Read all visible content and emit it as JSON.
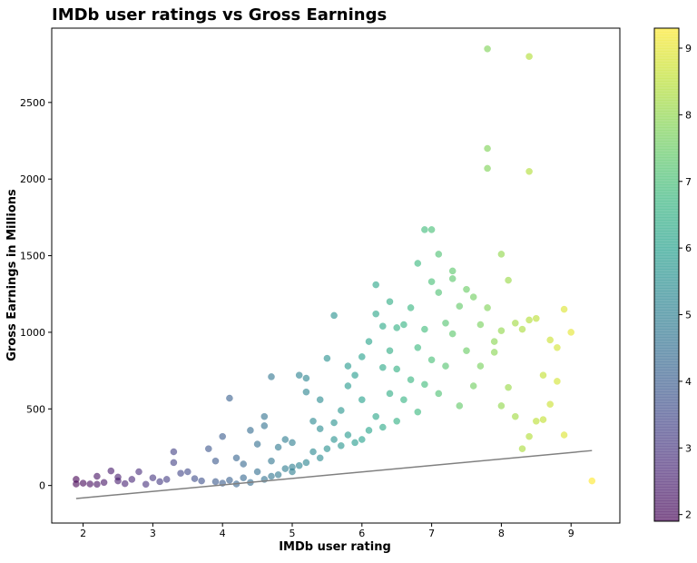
{
  "chart_data": {
    "type": "scatter",
    "title": "IMDb user ratings vs Gross Earnings",
    "xlabel": "IMDb user rating",
    "ylabel": "Gross Earnings in Millions",
    "xlim": [
      1.55,
      9.7
    ],
    "ylim": [
      -245,
      2985
    ],
    "x_ticks": [
      2,
      3,
      4,
      5,
      6,
      7,
      8,
      9
    ],
    "y_ticks": [
      0,
      500,
      1000,
      1500,
      2000,
      2500
    ],
    "grid": false,
    "colorbar": {
      "colormap": "viridis",
      "range": [
        1.9,
        9.3
      ],
      "ticks": [
        2,
        3,
        4,
        5,
        6,
        7,
        8,
        9
      ],
      "alpha": 0.6
    },
    "marker_alpha": 0.6,
    "trendline": {
      "color": "#808080",
      "points": [
        [
          1.9,
          -85
        ],
        [
          9.3,
          228
        ]
      ]
    },
    "series": [
      {
        "points": [
          [
            1.9,
            40
          ],
          [
            1.9,
            10
          ],
          [
            2.0,
            15
          ],
          [
            2.1,
            10
          ],
          [
            2.2,
            8
          ],
          [
            2.2,
            60
          ],
          [
            2.3,
            20
          ],
          [
            2.4,
            95
          ],
          [
            2.5,
            55
          ],
          [
            2.5,
            30
          ],
          [
            2.6,
            12
          ],
          [
            2.7,
            40
          ],
          [
            2.8,
            90
          ],
          [
            2.9,
            8
          ],
          [
            3.0,
            50
          ],
          [
            3.1,
            25
          ],
          [
            3.2,
            40
          ],
          [
            3.3,
            220
          ],
          [
            3.3,
            150
          ],
          [
            3.4,
            80
          ],
          [
            3.5,
            90
          ],
          [
            3.6,
            45
          ],
          [
            3.7,
            30
          ],
          [
            3.8,
            240
          ],
          [
            3.9,
            160
          ],
          [
            4.0,
            320
          ],
          [
            4.1,
            570
          ],
          [
            4.2,
            180
          ],
          [
            4.3,
            140
          ],
          [
            4.4,
            360
          ],
          [
            4.5,
            270
          ],
          [
            4.6,
            450
          ],
          [
            4.6,
            390
          ],
          [
            4.7,
            160
          ],
          [
            4.7,
            710
          ],
          [
            4.8,
            250
          ],
          [
            4.9,
            300
          ],
          [
            5.0,
            120
          ],
          [
            5.0,
            280
          ],
          [
            5.1,
            720
          ],
          [
            5.2,
            700
          ],
          [
            5.2,
            610
          ],
          [
            5.3,
            420
          ],
          [
            5.4,
            560
          ],
          [
            5.4,
            370
          ],
          [
            5.5,
            830
          ],
          [
            5.6,
            1110
          ],
          [
            5.6,
            410
          ],
          [
            5.7,
            490
          ],
          [
            5.8,
            780
          ],
          [
            5.8,
            650
          ],
          [
            5.9,
            720
          ],
          [
            6.0,
            840
          ],
          [
            6.0,
            560
          ],
          [
            6.1,
            940
          ],
          [
            6.2,
            1310
          ],
          [
            6.2,
            1120
          ],
          [
            6.3,
            1040
          ],
          [
            6.3,
            770
          ],
          [
            6.4,
            1200
          ],
          [
            6.4,
            880
          ],
          [
            6.5,
            1030
          ],
          [
            6.5,
            760
          ],
          [
            6.6,
            1050
          ],
          [
            6.7,
            1160
          ],
          [
            6.8,
            1450
          ],
          [
            6.8,
            900
          ],
          [
            6.9,
            1670
          ],
          [
            6.9,
            1020
          ],
          [
            7.0,
            1670
          ],
          [
            7.0,
            1330
          ],
          [
            7.1,
            1510
          ],
          [
            7.1,
            1260
          ],
          [
            7.2,
            1060
          ],
          [
            7.3,
            1400
          ],
          [
            7.3,
            1350
          ],
          [
            7.4,
            1170
          ],
          [
            7.5,
            1280
          ],
          [
            7.6,
            1230
          ],
          [
            7.7,
            1050
          ],
          [
            7.8,
            2850
          ],
          [
            7.8,
            2200
          ],
          [
            7.8,
            2070
          ],
          [
            7.8,
            1160
          ],
          [
            7.9,
            940
          ],
          [
            8.0,
            1510
          ],
          [
            8.0,
            1010
          ],
          [
            8.1,
            1340
          ],
          [
            8.2,
            1060
          ],
          [
            8.3,
            1020
          ],
          [
            8.4,
            2800
          ],
          [
            8.4,
            2050
          ],
          [
            8.4,
            1080
          ],
          [
            8.5,
            1090
          ],
          [
            8.6,
            720
          ],
          [
            8.7,
            950
          ],
          [
            8.8,
            900
          ],
          [
            8.9,
            1150
          ],
          [
            9.0,
            1000
          ],
          [
            9.3,
            30
          ],
          [
            8.9,
            330
          ],
          [
            8.8,
            680
          ],
          [
            8.7,
            530
          ],
          [
            8.6,
            430
          ],
          [
            8.5,
            420
          ],
          [
            8.4,
            320
          ],
          [
            8.3,
            240
          ],
          [
            8.2,
            450
          ],
          [
            8.1,
            640
          ],
          [
            8.0,
            520
          ],
          [
            7.9,
            870
          ],
          [
            7.7,
            780
          ],
          [
            7.6,
            650
          ],
          [
            7.5,
            880
          ],
          [
            7.4,
            520
          ],
          [
            7.3,
            990
          ],
          [
            7.2,
            780
          ],
          [
            7.1,
            600
          ],
          [
            7.0,
            820
          ],
          [
            6.9,
            660
          ],
          [
            6.8,
            480
          ],
          [
            6.7,
            690
          ],
          [
            6.6,
            560
          ],
          [
            6.5,
            420
          ],
          [
            6.4,
            600
          ],
          [
            6.3,
            380
          ],
          [
            6.2,
            450
          ],
          [
            6.1,
            360
          ],
          [
            6.0,
            300
          ],
          [
            5.9,
            280
          ],
          [
            5.8,
            330
          ],
          [
            5.7,
            260
          ],
          [
            5.6,
            300
          ],
          [
            5.5,
            240
          ],
          [
            5.4,
            180
          ],
          [
            5.3,
            220
          ],
          [
            5.2,
            150
          ],
          [
            5.1,
            130
          ],
          [
            5.0,
            90
          ],
          [
            4.9,
            110
          ],
          [
            4.8,
            70
          ],
          [
            4.7,
            60
          ],
          [
            4.6,
            40
          ],
          [
            4.5,
            90
          ],
          [
            4.4,
            20
          ],
          [
            4.3,
            50
          ],
          [
            4.2,
            10
          ],
          [
            4.1,
            35
          ],
          [
            4.0,
            15
          ],
          [
            3.9,
            25
          ]
        ]
      }
    ]
  }
}
